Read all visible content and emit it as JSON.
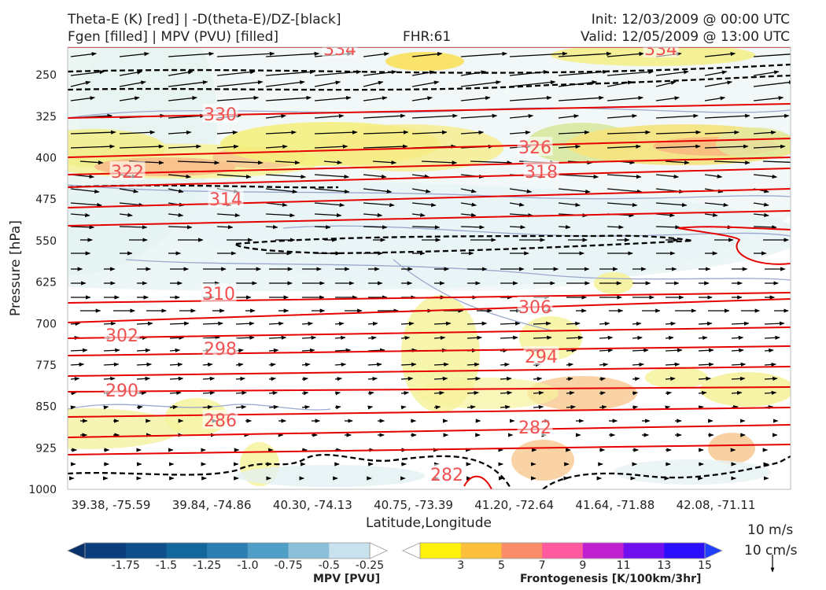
{
  "header": {
    "title_left_1": "Theta-E (K) [red] | -D(theta-E)/DZ-[black]",
    "title_left_2": "Fgen [filled] | MPV (PVU) [filled]",
    "title_center": "FHR:61",
    "title_right_1": "Init: 12/03/2009 @ 00:00 UTC",
    "title_right_2": "Valid: 12/05/2009 @ 13:00 UTC"
  },
  "chart_data": {
    "type": "cross-section",
    "xlabel": "Latitude,Longitude",
    "ylabel": "Pressure [hPa]",
    "y_axis": "pressure, inverted (1000 at bottom)",
    "ylim": [
      1000,
      200
    ],
    "y_ticks": [
      250,
      325,
      400,
      475,
      550,
      625,
      700,
      775,
      850,
      925,
      1000
    ],
    "x_ticks": [
      "39.38, -75.59",
      "39.84, -74.86",
      "40.30, -74.13",
      "40.75, -73.39",
      "41.20, -72.64",
      "41.64, -71.88",
      "42.08, -71.11"
    ],
    "theta_e_labels": [
      "334",
      "334",
      "330",
      "326",
      "322",
      "318",
      "314",
      "310",
      "306",
      "302",
      "298",
      "294",
      "290",
      "286",
      "282",
      "282"
    ],
    "theta_e_color": "#e60000",
    "ddz_color": "#000000",
    "vector_reference": {
      "u": "10 m/s",
      "w": "10 cm/s"
    }
  },
  "colorbars": {
    "mpv": {
      "name": "MPV [PVU]",
      "ticks": [
        "-1.75",
        "-1.5",
        "-1.25",
        "-1.0",
        "-0.75",
        "-0.5",
        "-0.25"
      ],
      "colors": [
        "#08306b",
        "#0b3d7a",
        "#0d4f8b",
        "#12679c",
        "#2b7fb0",
        "#4f9ec6",
        "#8cc0d8",
        "#c7e2ec",
        "#ffffff"
      ]
    },
    "fgen": {
      "name": "Frontogenesis [K/100km/3hr]",
      "ticks": [
        "3",
        "5",
        "7",
        "9",
        "11",
        "13",
        "15"
      ],
      "colors": [
        "#ffffff",
        "#fff20c",
        "#fbbf3c",
        "#fb8c6a",
        "#ff5aa0",
        "#c020d0",
        "#7010f0",
        "#2a10ff",
        "#2040ff"
      ]
    }
  }
}
